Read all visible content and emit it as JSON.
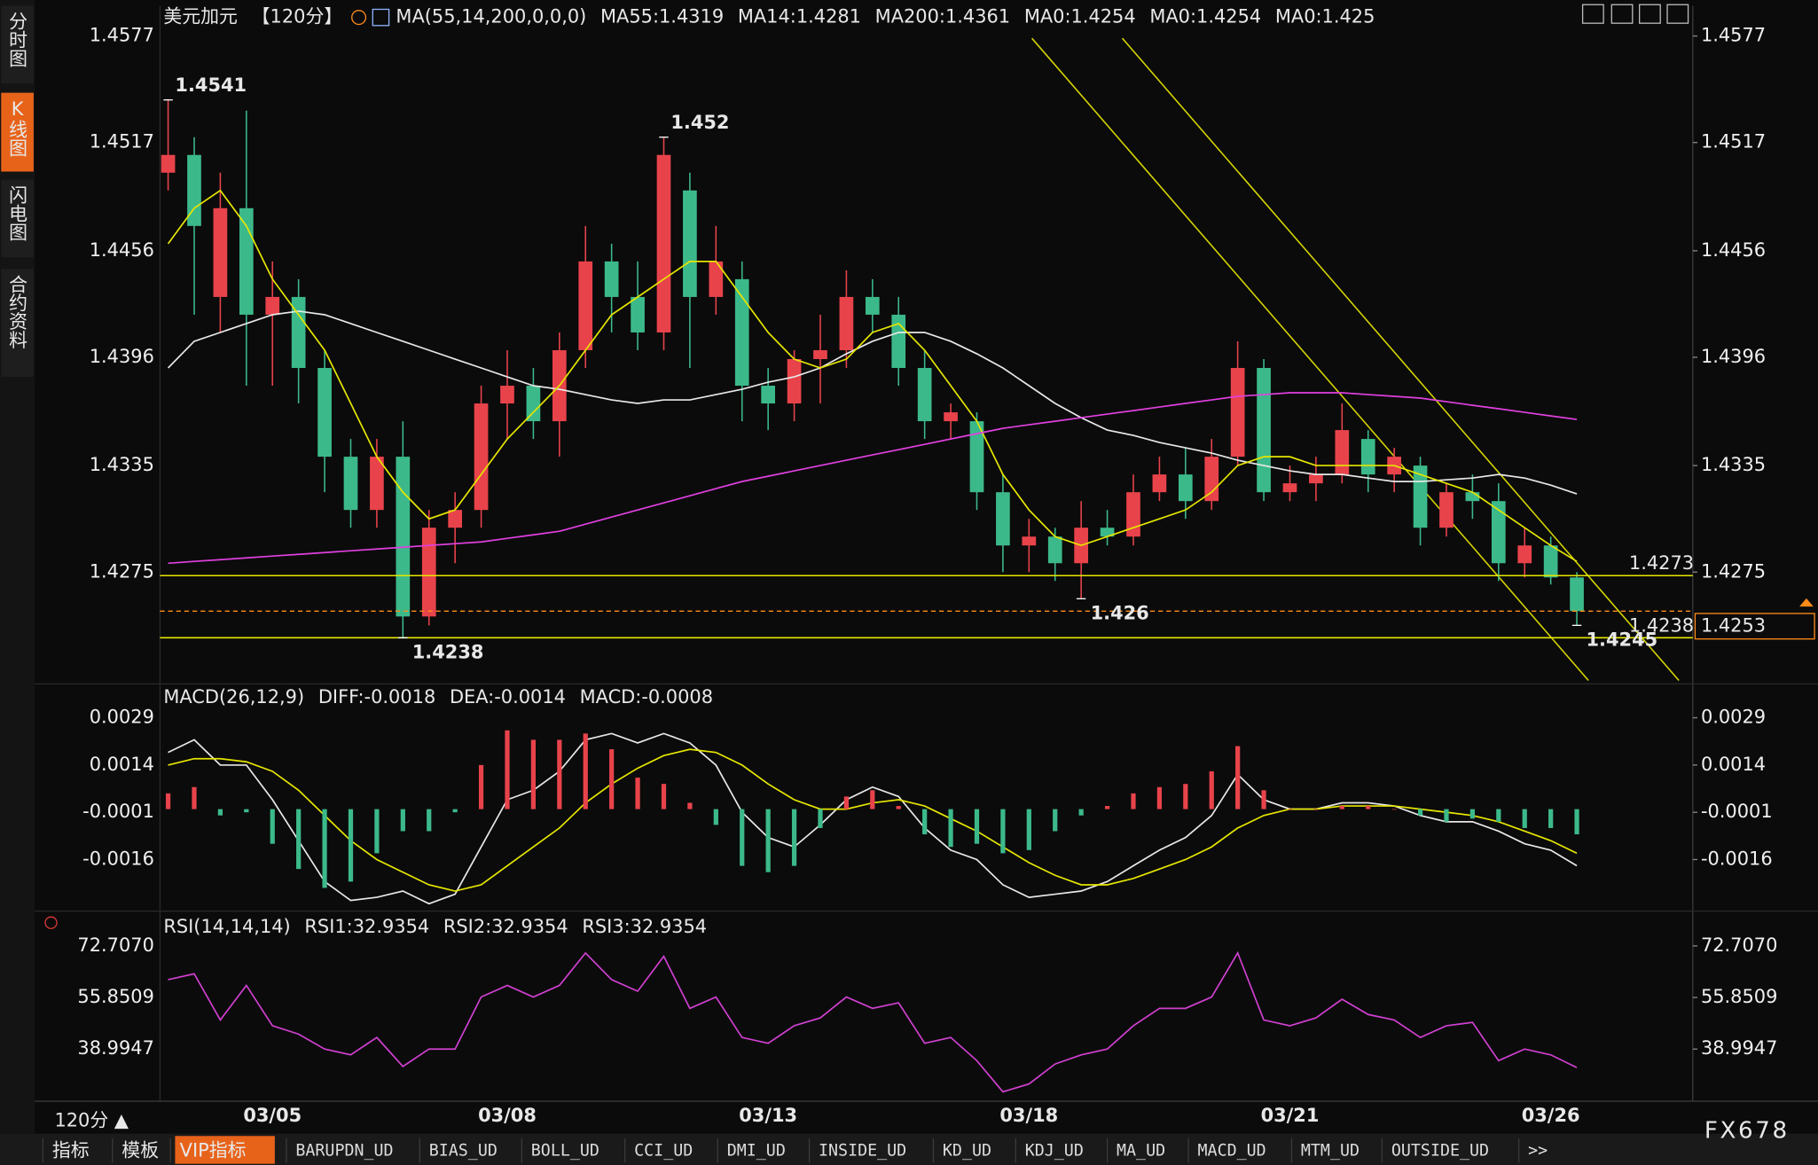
{
  "sidebar": {
    "tabs": [
      "分时图",
      "K线图",
      "闪电图",
      "合约资料"
    ],
    "active": 1
  },
  "toolbar": {
    "period": "120分 ▲",
    "tabs": [
      "指标",
      "模板",
      "VIP指标",
      "BARUPDN_UD",
      "BIAS_UD",
      "BOLL_UD",
      "CCI_UD",
      "DMI_UD",
      "INSIDE_UD",
      "KD_UD",
      "KDJ_UD",
      "MA_UD",
      "MACD_UD",
      "MTM_UD",
      "OUTSIDE_UD",
      ">>"
    ],
    "active": 2
  },
  "brand": "FX678",
  "chart_data": [
    {
      "type": "candlestick",
      "header": [
        {
          "text": "美元加元",
          "color": "#ffffff"
        },
        {
          "text": "【120分】",
          "color": "#ff8c1a"
        },
        {
          "text": "MA(55,14,200,0,0,0)",
          "color": "#ffffff"
        },
        {
          "text": "MA55:1.4319",
          "color": "#ffffff"
        },
        {
          "text": "MA14:1.4281",
          "color": "#e6e600"
        },
        {
          "text": "MA200:1.4361",
          "color": "#e040e0"
        },
        {
          "text": "MA0:1.4254",
          "color": "#3cc83c"
        },
        {
          "text": "MA0:1.4254",
          "color": "#a0a0a0"
        },
        {
          "text": "MA0:1.425",
          "color": "#e03838"
        }
      ],
      "categories": [
        null,
        null,
        null,
        null,
        "03/05",
        null,
        null,
        null,
        null,
        null,
        null,
        null,
        null,
        "03/08",
        null,
        null,
        null,
        null,
        null,
        null,
        null,
        null,
        null,
        "03/13",
        null,
        null,
        null,
        null,
        null,
        null,
        null,
        null,
        null,
        "03/18",
        null,
        null,
        null,
        null,
        null,
        null,
        null,
        null,
        null,
        "03/21",
        null,
        null,
        null,
        null,
        null,
        null,
        null,
        null,
        null,
        "03/26",
        null
      ],
      "open": [
        1.45,
        1.451,
        1.443,
        1.448,
        1.442,
        1.443,
        1.439,
        1.434,
        1.431,
        1.434,
        1.425,
        1.43,
        1.431,
        1.437,
        1.438,
        1.436,
        1.44,
        1.445,
        1.443,
        1.441,
        1.449,
        1.443,
        1.444,
        1.438,
        1.437,
        1.4395,
        1.44,
        1.443,
        1.442,
        1.439,
        1.436,
        1.436,
        1.432,
        1.429,
        1.4295,
        1.428,
        1.43,
        1.4295,
        1.432,
        1.433,
        1.4315,
        1.434,
        1.439,
        1.432,
        1.4325,
        1.433,
        1.435,
        1.433,
        1.4335,
        1.43,
        1.432,
        1.4315,
        1.428,
        1.429,
        1.4272
      ],
      "high": [
        1.4541,
        1.452,
        1.45,
        1.4535,
        1.445,
        1.444,
        1.44,
        1.435,
        1.435,
        1.436,
        1.431,
        1.432,
        1.438,
        1.44,
        1.439,
        1.441,
        1.447,
        1.446,
        1.445,
        1.452,
        1.45,
        1.447,
        1.445,
        1.439,
        1.44,
        1.442,
        1.4445,
        1.444,
        1.443,
        1.44,
        1.437,
        1.4365,
        1.433,
        1.4305,
        1.43,
        1.4315,
        1.431,
        1.433,
        1.434,
        1.4345,
        1.435,
        1.4405,
        1.4395,
        1.4335,
        1.434,
        1.437,
        1.4355,
        1.4345,
        1.434,
        1.4325,
        1.433,
        1.4325,
        1.43,
        1.4295,
        1.4275
      ],
      "low": [
        1.449,
        1.442,
        1.441,
        1.438,
        1.438,
        1.437,
        1.432,
        1.43,
        1.43,
        1.4238,
        1.4245,
        1.428,
        1.43,
        1.435,
        1.435,
        1.434,
        1.439,
        1.441,
        1.44,
        1.44,
        1.439,
        1.442,
        1.436,
        1.4355,
        1.436,
        1.437,
        1.439,
        1.441,
        1.438,
        1.435,
        1.435,
        1.431,
        1.4275,
        1.4275,
        1.427,
        1.426,
        1.429,
        1.429,
        1.4315,
        1.4305,
        1.431,
        1.4335,
        1.4315,
        1.4315,
        1.4315,
        1.4325,
        1.432,
        1.432,
        1.429,
        1.4295,
        1.4305,
        1.427,
        1.4272,
        1.4268,
        1.4245
      ],
      "close": [
        1.451,
        1.447,
        1.448,
        1.442,
        1.443,
        1.439,
        1.434,
        1.431,
        1.434,
        1.425,
        1.43,
        1.431,
        1.437,
        1.438,
        1.436,
        1.44,
        1.445,
        1.443,
        1.441,
        1.451,
        1.443,
        1.445,
        1.438,
        1.437,
        1.4395,
        1.44,
        1.443,
        1.442,
        1.439,
        1.436,
        1.4365,
        1.432,
        1.429,
        1.4295,
        1.428,
        1.43,
        1.4295,
        1.432,
        1.433,
        1.4315,
        1.434,
        1.439,
        1.432,
        1.4325,
        1.433,
        1.4355,
        1.433,
        1.434,
        1.43,
        1.432,
        1.4315,
        1.428,
        1.429,
        1.4272,
        1.4253
      ],
      "up_color": "#e8434b",
      "down_color": "#3cb98a",
      "series": [
        {
          "color": "#e8e8e8",
          "style": "line",
          "values": [
            1.439,
            1.4405,
            1.441,
            1.4415,
            1.442,
            1.4422,
            1.442,
            1.4415,
            1.441,
            1.4405,
            1.44,
            1.4395,
            1.439,
            1.4385,
            1.438,
            1.4378,
            1.4375,
            1.4372,
            1.437,
            1.4372,
            1.4372,
            1.4375,
            1.4378,
            1.4382,
            1.4385,
            1.439,
            1.4398,
            1.4405,
            1.441,
            1.441,
            1.4405,
            1.4398,
            1.439,
            1.438,
            1.437,
            1.4362,
            1.4355,
            1.4352,
            1.4348,
            1.4345,
            1.4342,
            1.4338,
            1.4335,
            1.4332,
            1.433,
            1.433,
            1.4328,
            1.4326,
            1.4326,
            1.4327,
            1.4328,
            1.433,
            1.4328,
            1.4324,
            1.4319
          ]
        },
        {
          "color": "#e6e600",
          "style": "line",
          "values": [
            1.446,
            1.448,
            1.449,
            1.447,
            1.444,
            1.442,
            1.44,
            1.437,
            1.434,
            1.432,
            1.4305,
            1.431,
            1.433,
            1.435,
            1.4365,
            1.438,
            1.44,
            1.442,
            1.443,
            1.444,
            1.445,
            1.445,
            1.443,
            1.441,
            1.4395,
            1.439,
            1.4395,
            1.441,
            1.4415,
            1.44,
            1.438,
            1.436,
            1.433,
            1.431,
            1.4295,
            1.429,
            1.4295,
            1.43,
            1.4305,
            1.431,
            1.432,
            1.4335,
            1.434,
            1.434,
            1.4335,
            1.4335,
            1.4335,
            1.4335,
            1.433,
            1.4325,
            1.432,
            1.431,
            1.43,
            1.429,
            1.4281
          ]
        },
        {
          "color": "#e040e0",
          "style": "line",
          "values": [
            1.428,
            1.4281,
            1.4282,
            1.4283,
            1.4284,
            1.4285,
            1.4286,
            1.4287,
            1.4288,
            1.4289,
            1.429,
            1.4291,
            1.4292,
            1.4294,
            1.4296,
            1.4298,
            1.4302,
            1.4306,
            1.431,
            1.4314,
            1.4318,
            1.4322,
            1.4326,
            1.4329,
            1.4332,
            1.4335,
            1.4338,
            1.4341,
            1.4344,
            1.4347,
            1.435,
            1.4353,
            1.4356,
            1.4358,
            1.436,
            1.4362,
            1.4364,
            1.4366,
            1.4368,
            1.437,
            1.4372,
            1.4374,
            1.4375,
            1.4376,
            1.4376,
            1.4376,
            1.4375,
            1.4374,
            1.4373,
            1.4371,
            1.4369,
            1.4367,
            1.4365,
            1.4363,
            1.4361
          ]
        }
      ],
      "levels": [
        {
          "value": 1.4273,
          "color": "#e6e600"
        },
        {
          "value": 1.4238,
          "color": "#e6e600"
        }
      ],
      "current": {
        "value": 1.4253,
        "color": "#ff8c1a"
      },
      "ylim": [
        1.4212,
        1.4594
      ],
      "yticks": [
        1.4577,
        1.4517,
        1.4456,
        1.4396,
        1.4335,
        1.4275
      ]
    },
    {
      "type": "combo",
      "header": [
        {
          "text": "MACD(26,12,9)",
          "color": "#ffffff"
        },
        {
          "text": "DIFF:-0.0018",
          "color": "#ffffff"
        },
        {
          "text": "DEA:-0.0014",
          "color": "#e6e600"
        },
        {
          "text": "MACD:-0.0008",
          "color": "#e040e0"
        }
      ],
      "series": [
        {
          "color": "#e8e8e8",
          "style": "line",
          "values": [
            0.0018,
            0.0022,
            0.0014,
            0.0014,
            0.0003,
            -0.001,
            -0.0023,
            -0.0029,
            -0.0028,
            -0.0026,
            -0.003,
            -0.0027,
            -0.0012,
            0.0003,
            0.0006,
            0.0012,
            0.0022,
            0.0024,
            0.0021,
            0.0024,
            0.0021,
            0.0014,
            -0.0001,
            -0.0009,
            -0.0012,
            -0.0005,
            0.0003,
            0.0007,
            0.0004,
            -0.0006,
            -0.0013,
            -0.0016,
            -0.0024,
            -0.0028,
            -0.0027,
            -0.0026,
            -0.0023,
            -0.0018,
            -0.0013,
            -0.0009,
            -0.0002,
            0.0011,
            0.0003,
            0.0,
            0.0,
            0.0002,
            0.0002,
            0.0001,
            -0.0002,
            -0.0004,
            -0.0004,
            -0.0007,
            -0.0011,
            -0.0013,
            -0.0018
          ]
        },
        {
          "color": "#e6e600",
          "style": "line",
          "values": [
            0.0014,
            0.0016,
            0.0016,
            0.0015,
            0.0012,
            0.0006,
            -0.0002,
            -0.001,
            -0.0016,
            -0.002,
            -0.0024,
            -0.0026,
            -0.0024,
            -0.0018,
            -0.0012,
            -0.0006,
            0.0002,
            0.0008,
            0.0013,
            0.0017,
            0.0019,
            0.0018,
            0.0014,
            0.0008,
            0.0003,
            0.0,
            0.0,
            0.0002,
            0.0003,
            0.0001,
            -0.0003,
            -0.0007,
            -0.0012,
            -0.0017,
            -0.0021,
            -0.0024,
            -0.0024,
            -0.0022,
            -0.0019,
            -0.0016,
            -0.0012,
            -0.0006,
            -0.0002,
            0.0,
            0.0,
            0.0001,
            0.0001,
            0.0001,
            0.0,
            -0.0001,
            -0.0002,
            -0.0004,
            -0.0007,
            -0.001,
            -0.0014
          ]
        },
        {
          "color": "#e8434b",
          "down_color": "#3cb98a",
          "style": "bar",
          "values": [
            0.0005,
            0.0007,
            -0.0002,
            -0.0001,
            -0.0011,
            -0.0019,
            -0.0025,
            -0.0023,
            -0.0014,
            -0.0007,
            -0.0007,
            -0.0001,
            0.0014,
            0.0025,
            0.0022,
            0.0022,
            0.0024,
            0.0019,
            0.001,
            0.0008,
            0.0002,
            -0.0005,
            -0.0018,
            -0.002,
            -0.0018,
            -0.0006,
            0.0004,
            0.0006,
            0.0001,
            -0.0008,
            -0.0012,
            -0.0011,
            -0.0014,
            -0.0013,
            -0.0007,
            -0.0002,
            0.0001,
            0.0005,
            0.0007,
            0.0008,
            0.0012,
            0.002,
            0.0006,
            0.0,
            0.0,
            0.0001,
            0.0001,
            0.0,
            -0.0002,
            -0.0004,
            -0.0003,
            -0.0004,
            -0.0006,
            -0.0006,
            -0.0008
          ]
        }
      ],
      "ylim": [
        -0.0032,
        0.0039
      ],
      "yticks": [
        0.0029,
        0.0014,
        -0.0001,
        -0.0016
      ]
    },
    {
      "type": "line",
      "header": [
        {
          "text": "RSI(14,14,14)",
          "color": "#ffffff"
        },
        {
          "text": "RSI1:32.9354",
          "color": "#ffffff"
        },
        {
          "text": "RSI2:32.9354",
          "color": "#e6e600"
        },
        {
          "text": "RSI3:32.9354",
          "color": "#e040e0"
        }
      ],
      "series": [
        {
          "color": "#d040d0",
          "style": "line",
          "values": [
            61.7,
            63.6,
            48.5,
            59.8,
            46.6,
            43.9,
            39.0,
            37.1,
            42.8,
            33.3,
            39.0,
            39.0,
            56.0,
            59.8,
            56.0,
            59.8,
            70.4,
            61.7,
            57.9,
            69.3,
            52.3,
            56.0,
            42.8,
            40.9,
            46.6,
            49.2,
            56.0,
            52.3,
            54.1,
            40.9,
            42.8,
            35.2,
            25.0,
            27.6,
            34.1,
            37.1,
            39.0,
            46.6,
            52.3,
            52.3,
            56.0,
            70.4,
            48.5,
            46.6,
            49.2,
            55.3,
            50.3,
            48.5,
            42.8,
            46.6,
            47.7,
            35.2,
            39.0,
            37.1,
            32.9354
          ]
        }
      ],
      "ylim": [
        21.95,
        82.56
      ],
      "yticks": [
        {
          "value": 72.707,
          "label": "72.7070"
        },
        {
          "value": 55.8509,
          "label": "55.8509"
        },
        {
          "value": 38.9947,
          "label": "38.9947"
        }
      ]
    }
  ]
}
